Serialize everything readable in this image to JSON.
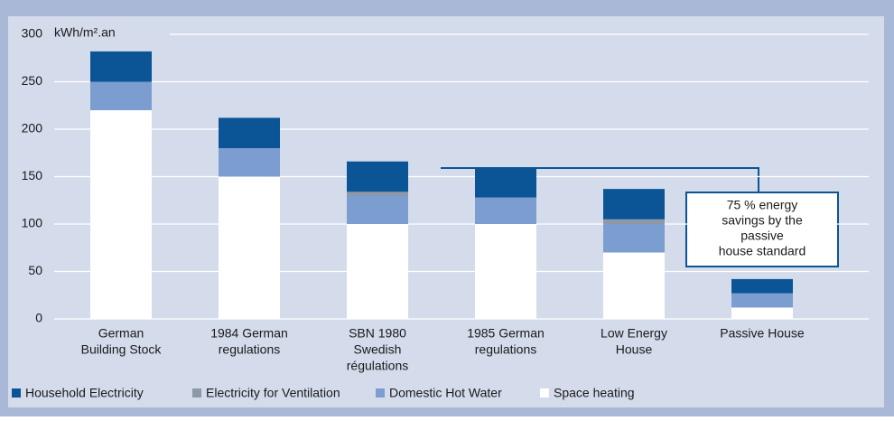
{
  "chart_data": {
    "type": "stacked_bar",
    "y_unit_label": "kWh/m².an",
    "categories": [
      [
        "German",
        "Building Stock"
      ],
      [
        "1984 German",
        "regulations"
      ],
      [
        "SBN 1980",
        "Swedish",
        "régulations"
      ],
      [
        "1985 German",
        "regulations"
      ],
      [
        "Low Energy",
        "House"
      ],
      [
        "Passive House"
      ]
    ],
    "series": [
      {
        "name": "Household Electricity",
        "color": "#0b5596",
        "values": [
          32,
          32,
          32,
          31,
          32,
          15
        ]
      },
      {
        "name": "Electricity for Ventilation",
        "color": "#8e98a6",
        "values": [
          0,
          0,
          4,
          0,
          5,
          0
        ]
      },
      {
        "name": "Domestic Hot Water",
        "color": "#7c9dcf",
        "values": [
          30,
          30,
          30,
          28,
          30,
          15
        ]
      },
      {
        "name": "Space heating",
        "color": "#ffffff",
        "values": [
          220,
          150,
          100,
          100,
          70,
          12
        ]
      }
    ],
    "ylim": [
      0,
      300
    ],
    "yticks": [
      0,
      50,
      100,
      150,
      200,
      250,
      300
    ],
    "grid": true,
    "annotation": [
      "75 % energy",
      "savings by the",
      "passive",
      "house standard"
    ]
  }
}
